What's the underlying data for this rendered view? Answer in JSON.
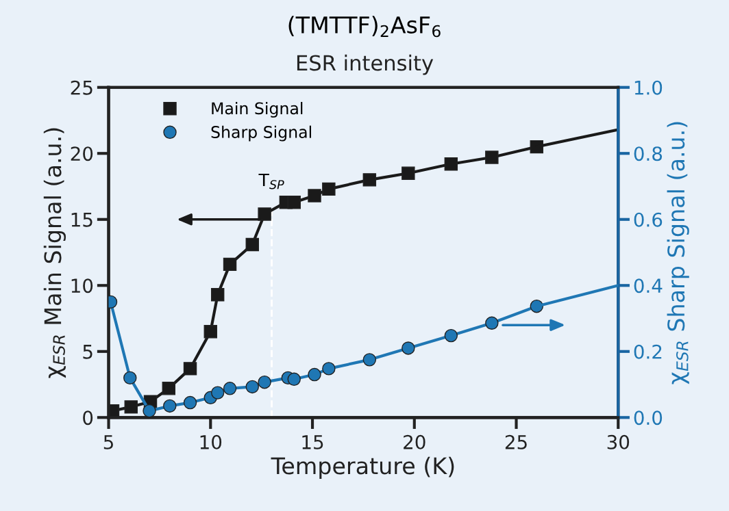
{
  "chart_data": {
    "type": "line",
    "title": "(TMTTF)$_{2}$AsF$_{6}$",
    "subtitle": "ESR intensity",
    "xlabel": "Temperature (K)",
    "ylabel": "χ$_{ESR}$ Main Signal (a.u.)",
    "y2label": "χ$_{ESR}$ Sharp Signal (a.u.)",
    "series": [
      {
        "name": "Main Signal",
        "color": "#1a1a1a",
        "marker": "square",
        "x": [
          5.2,
          6.1,
          7.05,
          7.95,
          9.0,
          10.0,
          10.35,
          10.95,
          12.05,
          12.65,
          13.7,
          14.1,
          15.1,
          15.8,
          17.8,
          19.7,
          21.8,
          23.8,
          26.0
        ],
        "values": [
          0.5,
          0.8,
          1.2,
          2.2,
          3.7,
          6.5,
          9.3,
          11.6,
          13.1,
          15.4,
          16.3,
          16.3,
          16.8,
          17.3,
          18.0,
          18.5,
          19.2,
          19.7,
          20.5
        ]
      },
      {
        "type": "line",
        "color": "#1a1a1a",
        "marker": "none",
        "x": [
          26.0,
          30.0
        ],
        "values": [
          20.5,
          21.8
        ]
      },
      {
        "name": "Sharp Signal",
        "color": "#1f77b4",
        "marker": "circle",
        "axis": "y2",
        "x": [
          5.1,
          6.05,
          7.0,
          8.0,
          9.0,
          10.0,
          10.35,
          10.95,
          12.05,
          12.65,
          13.8,
          14.1,
          15.1,
          15.8,
          17.8,
          19.7,
          21.8,
          23.8,
          26.0
        ],
        "values": [
          0.35,
          0.12,
          0.02,
          0.035,
          0.045,
          0.06,
          0.075,
          0.088,
          0.093,
          0.107,
          0.12,
          0.116,
          0.13,
          0.148,
          0.175,
          0.21,
          0.248,
          0.286,
          0.337
        ]
      },
      {
        "type": "line",
        "color": "#1f77b4",
        "marker": "none",
        "axis": "y2",
        "x": [
          26.0,
          30.0
        ],
        "values": [
          0.337,
          0.4
        ]
      }
    ],
    "xlim": [
      5,
      30
    ],
    "xticks": [
      5,
      10,
      15,
      20,
      25,
      30
    ],
    "ylim": [
      0,
      25
    ],
    "yticks": [
      0,
      5,
      10,
      15,
      20,
      25
    ],
    "y2lim": [
      0,
      1
    ],
    "y2ticks": [
      {
        "value": 0,
        "label": "0.0"
      },
      {
        "value": 0.2,
        "label": "0.2"
      },
      {
        "value": 0.4,
        "label": "0.4"
      },
      {
        "value": 0.6,
        "label": "0.6"
      },
      {
        "value": 0.8,
        "label": "0.8"
      },
      {
        "value": 1,
        "label": "1.0"
      }
    ],
    "ref_lines": [
      {
        "axis": "x",
        "value": 13,
        "label": "T$_{SP}$",
        "color": "#ffffff",
        "line_style": "dashed"
      }
    ],
    "legend": "top left",
    "grid": false,
    "line_style": "solid"
  }
}
